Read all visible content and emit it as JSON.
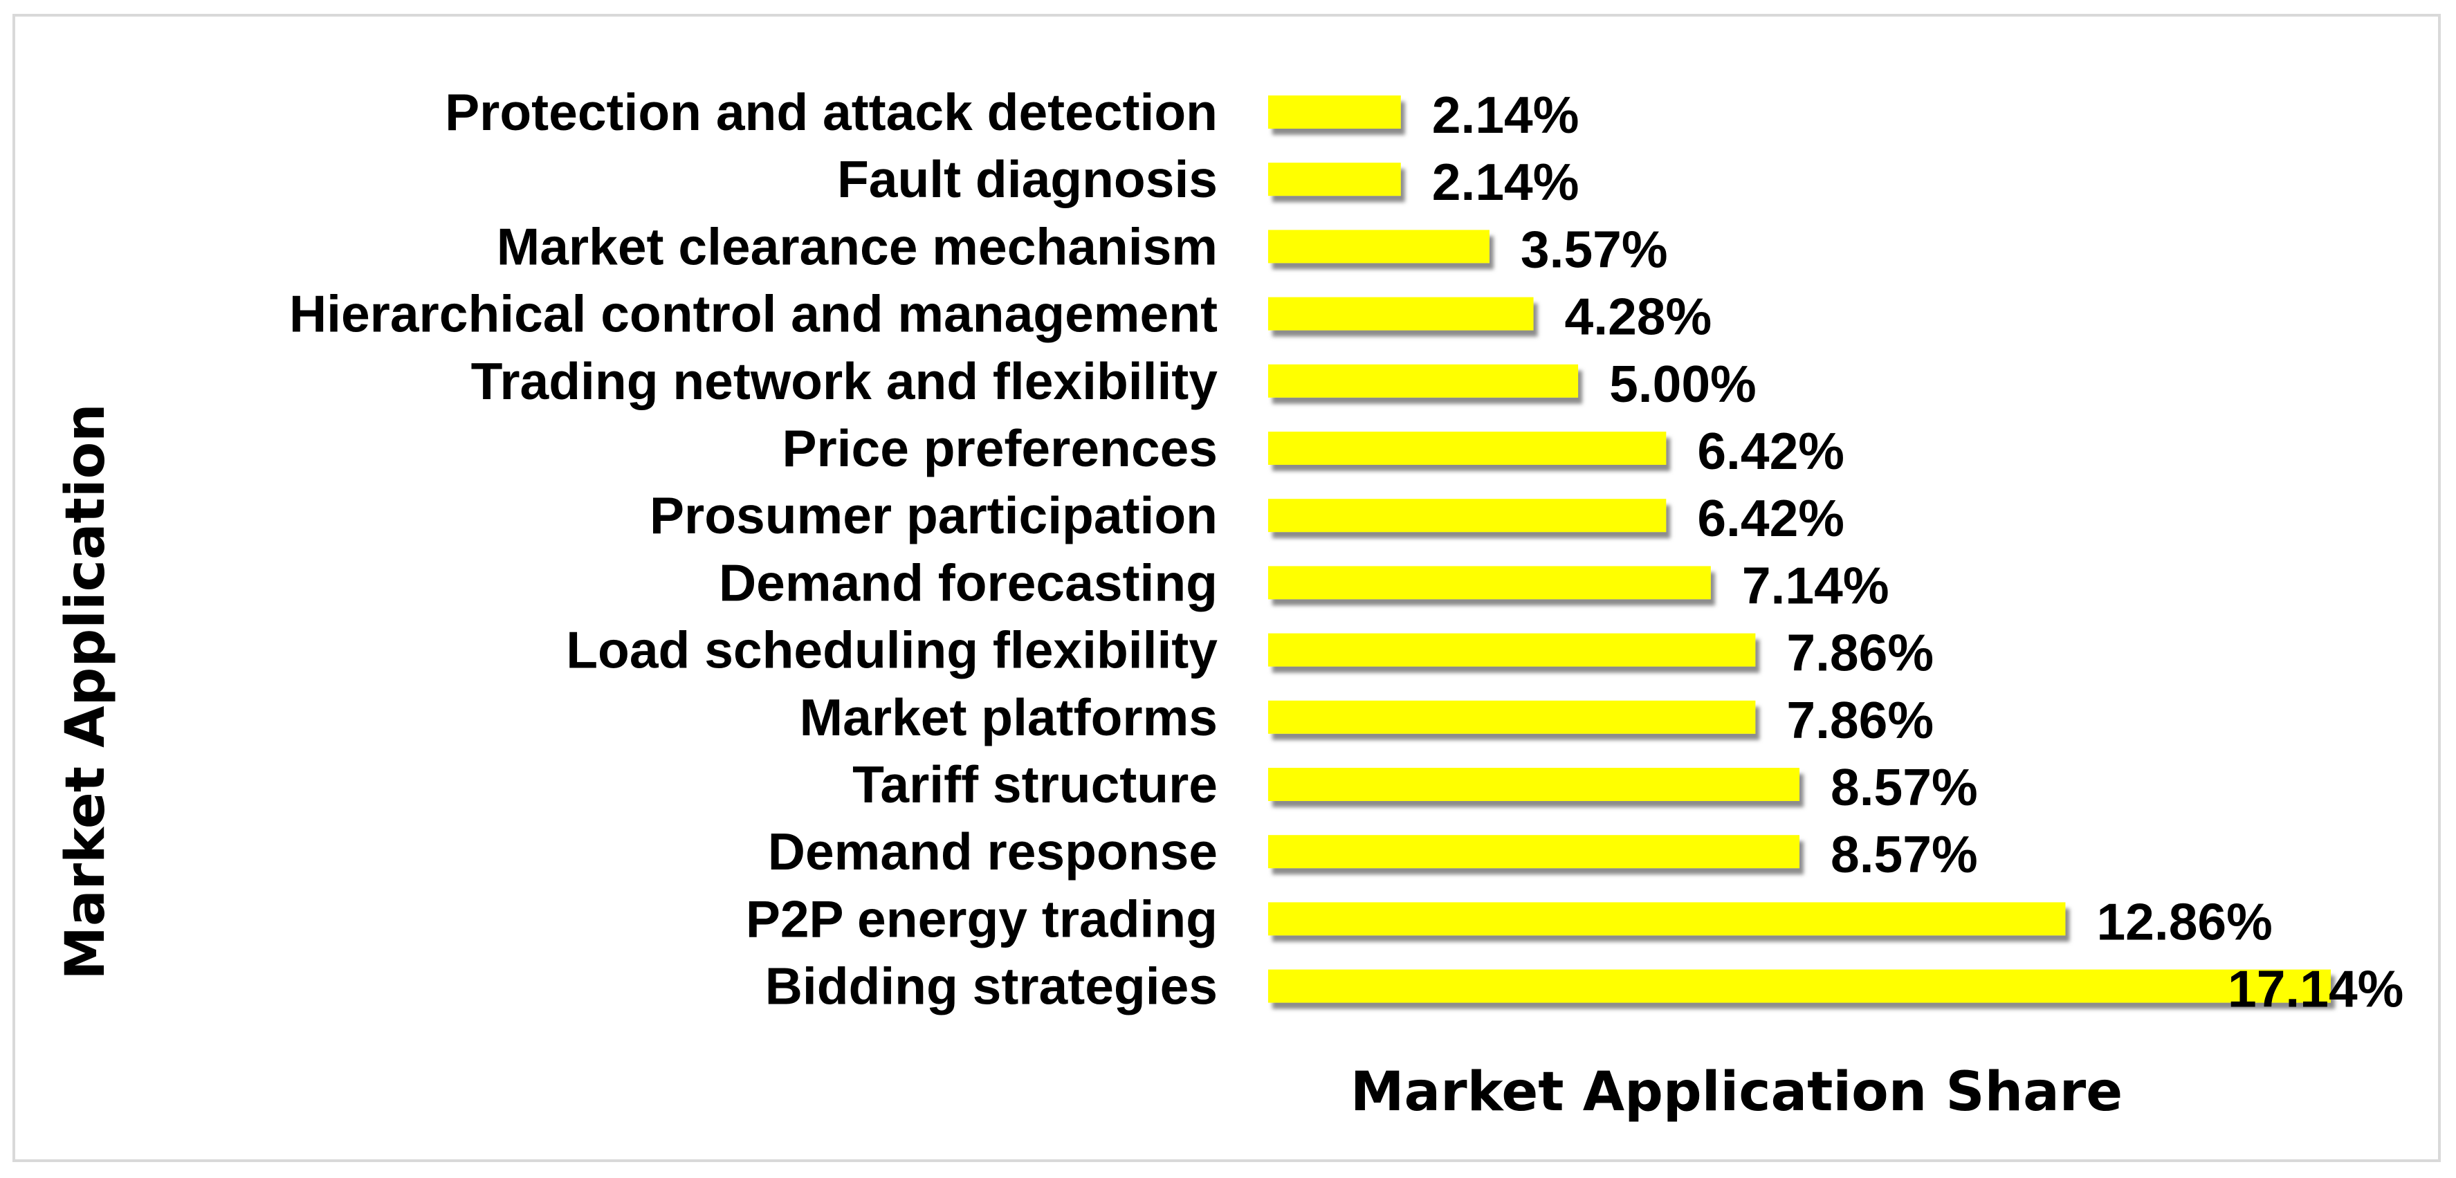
{
  "chart_data": {
    "type": "bar",
    "orientation": "horizontal",
    "categories": [
      "Protection and attack detection",
      "Fault diagnosis",
      "Market clearance mechanism",
      "Hierarchical control and management",
      "Trading network and flexibility",
      "Price preferences",
      "Prosumer participation",
      "Demand forecasting",
      "Load scheduling flexibility",
      "Market platforms",
      "Tariff structure",
      "Demand response",
      "P2P energy trading",
      "Bidding strategies"
    ],
    "values": [
      2.14,
      2.14,
      3.57,
      4.28,
      5.0,
      6.42,
      6.42,
      7.14,
      7.86,
      7.86,
      8.57,
      8.57,
      12.86,
      17.14
    ],
    "value_labels": [
      "2.14%",
      "2.14%",
      "3.57%",
      "4.28%",
      "5.00%",
      "6.42%",
      "6.42%",
      "7.14%",
      "7.86%",
      "7.86%",
      "8.57%",
      "8.57%",
      "12.86%",
      "17.14%"
    ],
    "title": "",
    "xlabel": "Market Application Share",
    "ylabel": "Market Application",
    "xlim": [
      0,
      17.14
    ],
    "grid": false,
    "legend": "none",
    "bar_color": "#ffff00",
    "bar_shadow_color": "#7f7f7f"
  }
}
